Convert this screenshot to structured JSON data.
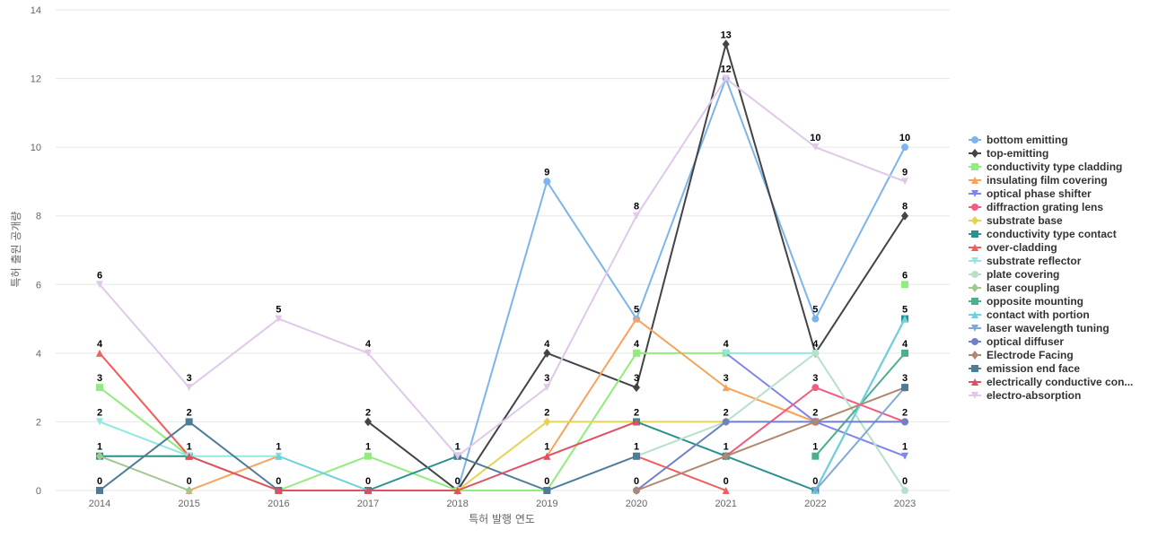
{
  "chart_data": {
    "type": "line",
    "title": "",
    "xlabel": "특허 발행 연도",
    "ylabel": "특허 출원 공개량",
    "ylim": [
      0,
      14
    ],
    "yticks": [
      0,
      2,
      4,
      6,
      8,
      10,
      12,
      14
    ],
    "grid": true,
    "legend_position": "right",
    "categories": [
      "2014",
      "2015",
      "2016",
      "2017",
      "2018",
      "2019",
      "2020",
      "2021",
      "2022",
      "2023"
    ],
    "series": [
      {
        "name": "bottom emitting",
        "color": "#7cb5ec",
        "marker": "circle",
        "values": [
          null,
          null,
          null,
          null,
          0,
          9,
          5,
          12,
          5,
          10
        ]
      },
      {
        "name": "top-emitting",
        "color": "#434348",
        "marker": "diamond",
        "values": [
          null,
          null,
          null,
          2,
          0,
          4,
          3,
          13,
          4,
          8
        ]
      },
      {
        "name": "conductivity type cladding",
        "color": "#90ed7d",
        "marker": "square",
        "values": [
          3,
          1,
          0,
          1,
          0,
          0,
          4,
          4,
          null,
          6
        ]
      },
      {
        "name": "insulating film covering",
        "color": "#f7a35c",
        "marker": "triangle",
        "values": [
          null,
          0,
          1,
          null,
          null,
          1,
          5,
          3,
          2,
          null
        ]
      },
      {
        "name": "optical phase shifter",
        "color": "#8085e9",
        "marker": "triangle-down",
        "values": [
          null,
          null,
          null,
          null,
          null,
          null,
          null,
          4,
          2,
          1
        ]
      },
      {
        "name": "diffraction grating lens",
        "color": "#f15c80",
        "marker": "circle",
        "values": [
          null,
          null,
          null,
          null,
          null,
          null,
          null,
          1,
          3,
          2
        ]
      },
      {
        "name": "substrate base",
        "color": "#e4d354",
        "marker": "diamond",
        "values": [
          null,
          null,
          null,
          null,
          0,
          2,
          2,
          2,
          null,
          null
        ]
      },
      {
        "name": "conductivity type contact",
        "color": "#2b908f",
        "marker": "square",
        "values": [
          1,
          1,
          null,
          0,
          1,
          null,
          2,
          1,
          0,
          5
        ]
      },
      {
        "name": "over-cladding",
        "color": "#f45b5b",
        "marker": "triangle",
        "values": [
          4,
          1,
          null,
          null,
          null,
          null,
          1,
          0,
          null,
          null
        ]
      },
      {
        "name": "substrate reflector",
        "color": "#91e8e1",
        "marker": "triangle-down",
        "values": [
          2,
          1,
          1,
          null,
          null,
          null,
          null,
          4,
          4,
          null
        ]
      },
      {
        "name": "plate covering",
        "color": "#b8e0c8",
        "marker": "circle",
        "values": [
          null,
          null,
          null,
          null,
          null,
          null,
          1,
          2,
          4,
          0
        ]
      },
      {
        "name": "laser coupling",
        "color": "#a0c890",
        "marker": "diamond",
        "values": [
          1,
          0,
          null,
          null,
          null,
          null,
          null,
          null,
          null,
          null
        ]
      },
      {
        "name": "opposite mounting",
        "color": "#4caf8c",
        "marker": "square",
        "values": [
          null,
          null,
          null,
          null,
          null,
          null,
          null,
          null,
          1,
          4
        ]
      },
      {
        "name": "contact with portion",
        "color": "#70d0e0",
        "marker": "triangle",
        "values": [
          null,
          null,
          1,
          0,
          null,
          null,
          null,
          null,
          0,
          5
        ]
      },
      {
        "name": "laser wavelength tuning",
        "color": "#80a8d8",
        "marker": "triangle-down",
        "values": [
          null,
          null,
          null,
          null,
          null,
          null,
          null,
          null,
          0,
          3
        ]
      },
      {
        "name": "optical diffuser",
        "color": "#7080c8",
        "marker": "circle",
        "values": [
          null,
          null,
          null,
          null,
          null,
          null,
          0,
          2,
          2,
          2
        ]
      },
      {
        "name": "Electrode Facing",
        "color": "#b08870",
        "marker": "diamond",
        "values": [
          null,
          null,
          null,
          null,
          null,
          null,
          0,
          1,
          2,
          3
        ]
      },
      {
        "name": "emission end face",
        "color": "#4e7c98",
        "marker": "square",
        "values": [
          0,
          2,
          0,
          null,
          1,
          0,
          1,
          null,
          null,
          3
        ]
      },
      {
        "name": "electrically conductive con...",
        "color": "#e05060",
        "marker": "triangle",
        "values": [
          null,
          1,
          0,
          0,
          0,
          1,
          2,
          null,
          null,
          null
        ]
      },
      {
        "name": "electro-absorption",
        "color": "#e0c8e8",
        "marker": "triangle-down",
        "values": [
          6,
          3,
          5,
          4,
          1,
          3,
          8,
          12,
          10,
          9
        ]
      }
    ],
    "data_labels": [
      {
        "x": "2014",
        "y": 6,
        "text": "6"
      },
      {
        "x": "2014",
        "y": 4,
        "text": "4"
      },
      {
        "x": "2014",
        "y": 3,
        "text": "3"
      },
      {
        "x": "2014",
        "y": 2,
        "text": "2"
      },
      {
        "x": "2014",
        "y": 1,
        "text": "1"
      },
      {
        "x": "2014",
        "y": 0,
        "text": "0"
      },
      {
        "x": "2015",
        "y": 3,
        "text": "3"
      },
      {
        "x": "2015",
        "y": 2,
        "text": "2"
      },
      {
        "x": "2015",
        "y": 1,
        "text": "1"
      },
      {
        "x": "2015",
        "y": 0,
        "text": "0"
      },
      {
        "x": "2016",
        "y": 5,
        "text": "5"
      },
      {
        "x": "2016",
        "y": 1,
        "text": "1"
      },
      {
        "x": "2016",
        "y": 0,
        "text": "0"
      },
      {
        "x": "2017",
        "y": 4,
        "text": "4"
      },
      {
        "x": "2017",
        "y": 2,
        "text": "2"
      },
      {
        "x": "2017",
        "y": 1,
        "text": "1"
      },
      {
        "x": "2017",
        "y": 0,
        "text": "0"
      },
      {
        "x": "2018",
        "y": 1,
        "text": "1"
      },
      {
        "x": "2018",
        "y": 0,
        "text": "0"
      },
      {
        "x": "2019",
        "y": 9,
        "text": "9"
      },
      {
        "x": "2019",
        "y": 4,
        "text": "4"
      },
      {
        "x": "2019",
        "y": 3,
        "text": "3"
      },
      {
        "x": "2019",
        "y": 2,
        "text": "2"
      },
      {
        "x": "2019",
        "y": 1,
        "text": "1"
      },
      {
        "x": "2019",
        "y": 0,
        "text": "0"
      },
      {
        "x": "2020",
        "y": 8,
        "text": "8"
      },
      {
        "x": "2020",
        "y": 5,
        "text": "5"
      },
      {
        "x": "2020",
        "y": 4,
        "text": "4"
      },
      {
        "x": "2020",
        "y": 3,
        "text": "3"
      },
      {
        "x": "2020",
        "y": 2,
        "text": "2"
      },
      {
        "x": "2020",
        "y": 1,
        "text": "1"
      },
      {
        "x": "2020",
        "y": 0,
        "text": "0"
      },
      {
        "x": "2021",
        "y": 13,
        "text": "13"
      },
      {
        "x": "2021",
        "y": 12,
        "text": "12"
      },
      {
        "x": "2021",
        "y": 4,
        "text": "4"
      },
      {
        "x": "2021",
        "y": 3,
        "text": "3"
      },
      {
        "x": "2021",
        "y": 2,
        "text": "2"
      },
      {
        "x": "2021",
        "y": 1,
        "text": "1"
      },
      {
        "x": "2021",
        "y": 0,
        "text": "0"
      },
      {
        "x": "2022",
        "y": 10,
        "text": "10"
      },
      {
        "x": "2022",
        "y": 5,
        "text": "5"
      },
      {
        "x": "2022",
        "y": 4,
        "text": "4"
      },
      {
        "x": "2022",
        "y": 3,
        "text": "3"
      },
      {
        "x": "2022",
        "y": 2,
        "text": "2"
      },
      {
        "x": "2022",
        "y": 1,
        "text": "1"
      },
      {
        "x": "2022",
        "y": 0,
        "text": "0"
      },
      {
        "x": "2023",
        "y": 10,
        "text": "10"
      },
      {
        "x": "2023",
        "y": 9,
        "text": "9"
      },
      {
        "x": "2023",
        "y": 8,
        "text": "8"
      },
      {
        "x": "2023",
        "y": 6,
        "text": "6"
      },
      {
        "x": "2023",
        "y": 5,
        "text": "5"
      },
      {
        "x": "2023",
        "y": 4,
        "text": "4"
      },
      {
        "x": "2023",
        "y": 3,
        "text": "3"
      },
      {
        "x": "2023",
        "y": 2,
        "text": "2"
      },
      {
        "x": "2023",
        "y": 1,
        "text": "1"
      },
      {
        "x": "2023",
        "y": 0,
        "text": "0"
      }
    ]
  }
}
